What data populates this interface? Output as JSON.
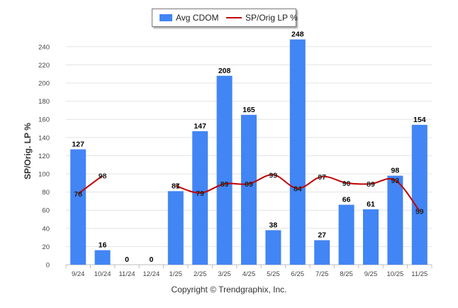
{
  "chart_data": {
    "type": "bar+line",
    "categories": [
      "9/24",
      "10/24",
      "11/24",
      "12/24",
      "1/25",
      "2/25",
      "3/25",
      "4/25",
      "5/25",
      "6/25",
      "7/25",
      "8/25",
      "9/25",
      "10/25",
      "11/25"
    ],
    "series": [
      {
        "name": "Avg CDOM",
        "type": "bar",
        "color": "#4285f4",
        "values": [
          127,
          16,
          0,
          0,
          81,
          147,
          208,
          165,
          38,
          248,
          27,
          66,
          61,
          98,
          154
        ]
      },
      {
        "name": "SP/Orig LP %",
        "type": "line",
        "color": "#c00000",
        "values": [
          78,
          98,
          null,
          null,
          87,
          79,
          89,
          89,
          99,
          84,
          97,
          90,
          89,
          93,
          59
        ]
      }
    ],
    "ylabel": "SP/Orig. LP %",
    "ylim": [
      0,
      250
    ],
    "yticks": [
      0,
      20,
      40,
      60,
      80,
      100,
      120,
      140,
      160,
      180,
      200,
      220,
      240
    ],
    "grid": true,
    "legend_position": "top-center"
  },
  "legend": {
    "bar_label": "Avg CDOM",
    "line_label": "SP/Orig LP %"
  },
  "footer": "Copyright © Trendgraphix, Inc."
}
